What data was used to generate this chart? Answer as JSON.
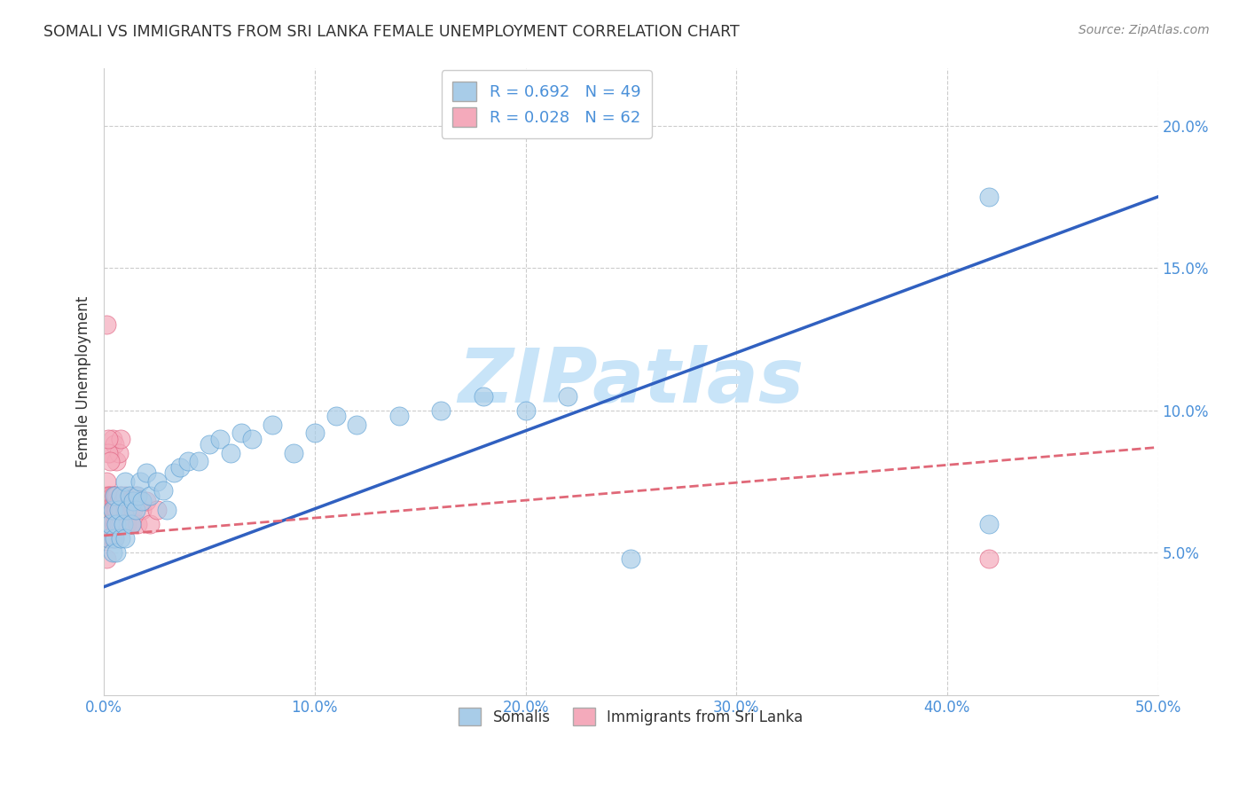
{
  "title": "SOMALI VS IMMIGRANTS FROM SRI LANKA FEMALE UNEMPLOYMENT CORRELATION CHART",
  "source": "Source: ZipAtlas.com",
  "ylabel": "Female Unemployment",
  "legend_labels": [
    "Somalis",
    "Immigrants from Sri Lanka"
  ],
  "R_somali": 0.692,
  "N_somali": 49,
  "R_srilanka": 0.028,
  "N_srilanka": 62,
  "xlim": [
    0.0,
    0.5
  ],
  "ylim": [
    0.0,
    0.22
  ],
  "xticks": [
    0.0,
    0.1,
    0.2,
    0.3,
    0.4,
    0.5
  ],
  "xtick_labels": [
    "0.0%",
    "10.0%",
    "20.0%",
    "30.0%",
    "40.0%",
    "50.0%"
  ],
  "yticks": [
    0.05,
    0.1,
    0.15,
    0.2
  ],
  "ytick_labels": [
    "5.0%",
    "10.0%",
    "15.0%",
    "20.0%"
  ],
  "color_blue_fill": "#a8cce8",
  "color_pink_fill": "#f4aabb",
  "color_blue_edge": "#5a9fd4",
  "color_pink_edge": "#e06080",
  "color_blue_line": "#3060c0",
  "color_pink_line": "#e06878",
  "watermark": "ZIPatlas",
  "watermark_color": "#c8e4f8",
  "background_color": "#ffffff",
  "grid_color": "#cccccc",
  "blue_line_x0": 0.0,
  "blue_line_y0": 0.038,
  "blue_line_x1": 0.5,
  "blue_line_y1": 0.175,
  "pink_line_x0": 0.0,
  "pink_line_y0": 0.056,
  "pink_line_x1": 0.5,
  "pink_line_y1": 0.087,
  "somali_x": [
    0.002,
    0.003,
    0.004,
    0.004,
    0.005,
    0.005,
    0.006,
    0.006,
    0.007,
    0.008,
    0.008,
    0.009,
    0.01,
    0.01,
    0.011,
    0.012,
    0.013,
    0.014,
    0.015,
    0.016,
    0.017,
    0.018,
    0.02,
    0.022,
    0.025,
    0.028,
    0.03,
    0.033,
    0.036,
    0.04,
    0.045,
    0.05,
    0.055,
    0.06,
    0.065,
    0.07,
    0.08,
    0.09,
    0.1,
    0.11,
    0.12,
    0.14,
    0.16,
    0.18,
    0.2,
    0.22,
    0.25,
    0.42,
    0.42
  ],
  "somali_y": [
    0.055,
    0.06,
    0.05,
    0.065,
    0.055,
    0.07,
    0.06,
    0.05,
    0.065,
    0.055,
    0.07,
    0.06,
    0.075,
    0.055,
    0.065,
    0.07,
    0.06,
    0.068,
    0.065,
    0.07,
    0.075,
    0.068,
    0.078,
    0.07,
    0.075,
    0.072,
    0.065,
    0.078,
    0.08,
    0.082,
    0.082,
    0.088,
    0.09,
    0.085,
    0.092,
    0.09,
    0.095,
    0.085,
    0.092,
    0.098,
    0.095,
    0.098,
    0.1,
    0.105,
    0.1,
    0.105,
    0.048,
    0.175,
    0.06
  ],
  "srilanka_x": [
    0.001,
    0.001,
    0.001,
    0.001,
    0.001,
    0.002,
    0.002,
    0.002,
    0.002,
    0.002,
    0.002,
    0.003,
    0.003,
    0.003,
    0.003,
    0.003,
    0.004,
    0.004,
    0.004,
    0.004,
    0.005,
    0.005,
    0.005,
    0.005,
    0.005,
    0.006,
    0.006,
    0.006,
    0.006,
    0.007,
    0.007,
    0.007,
    0.008,
    0.008,
    0.008,
    0.009,
    0.009,
    0.01,
    0.01,
    0.011,
    0.011,
    0.012,
    0.013,
    0.014,
    0.015,
    0.016,
    0.018,
    0.02,
    0.022,
    0.025,
    0.003,
    0.004,
    0.005,
    0.006,
    0.007,
    0.008,
    0.002,
    0.003,
    0.001,
    0.002,
    0.001,
    0.42
  ],
  "srilanka_y": [
    0.065,
    0.07,
    0.055,
    0.06,
    0.075,
    0.06,
    0.065,
    0.055,
    0.07,
    0.065,
    0.06,
    0.068,
    0.055,
    0.065,
    0.07,
    0.06,
    0.065,
    0.07,
    0.055,
    0.065,
    0.068,
    0.06,
    0.07,
    0.065,
    0.055,
    0.068,
    0.06,
    0.065,
    0.07,
    0.06,
    0.068,
    0.065,
    0.06,
    0.07,
    0.065,
    0.068,
    0.06,
    0.065,
    0.07,
    0.06,
    0.065,
    0.068,
    0.06,
    0.065,
    0.07,
    0.06,
    0.065,
    0.068,
    0.06,
    0.065,
    0.085,
    0.09,
    0.088,
    0.082,
    0.085,
    0.09,
    0.085,
    0.082,
    0.13,
    0.09,
    0.048,
    0.048
  ]
}
